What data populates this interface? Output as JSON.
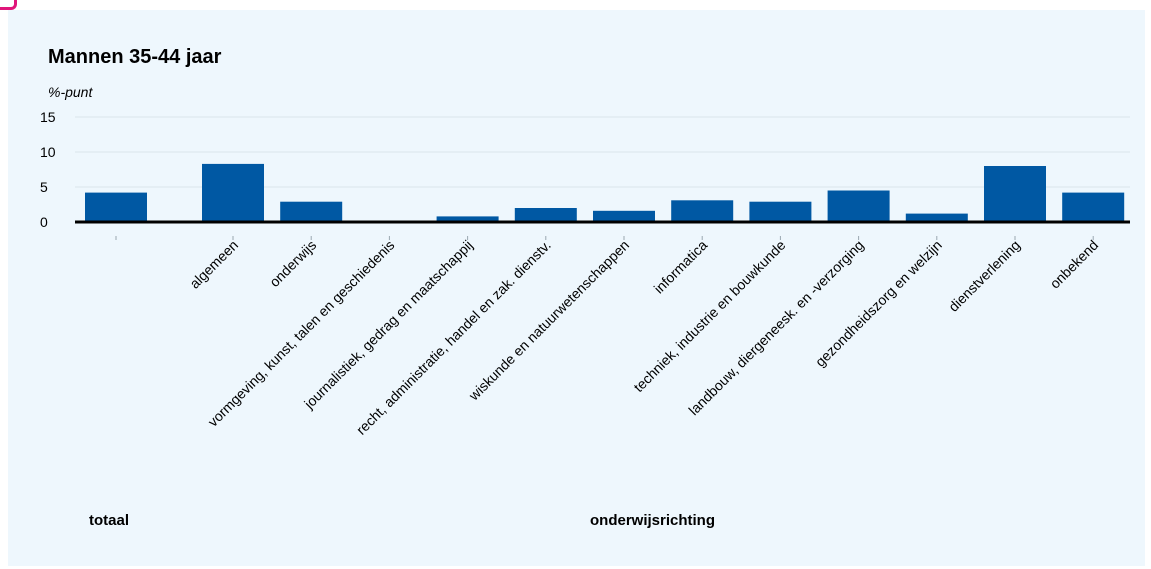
{
  "chart_data": {
    "type": "bar",
    "title": "Mannen 35-44 jaar",
    "ylabel": "%-punt",
    "ylim": [
      0,
      15
    ],
    "yticks": [
      0,
      5,
      10,
      15
    ],
    "grid": true,
    "bar_color": "#0058a3",
    "baseline_color": "#000000",
    "grid_color": "#dbe5ec",
    "categories": [
      "",
      "algemeen",
      "onderwijs",
      "vormgeving, kunst, talen en geschiedenis",
      "journalistiek, gedrag en maatschappij",
      "recht, administratie, handel en zak. dienstv.",
      "wiskunde en natuurwetenschappen",
      "informatica",
      "techniek, industrie en bouwkunde",
      "landbouw, diergeneesk. en -verzorging",
      "gezondheidszorg en welzijn",
      "dienstverlening",
      "onbekend"
    ],
    "values": [
      4.2,
      8.3,
      2.9,
      -0.2,
      0.8,
      2.0,
      1.6,
      3.1,
      2.9,
      4.5,
      1.2,
      8.0,
      4.2
    ],
    "groups": [
      {
        "label": "totaal"
      },
      {
        "label": "onderwijsrichting"
      }
    ]
  },
  "accent_color": "#e0167a"
}
